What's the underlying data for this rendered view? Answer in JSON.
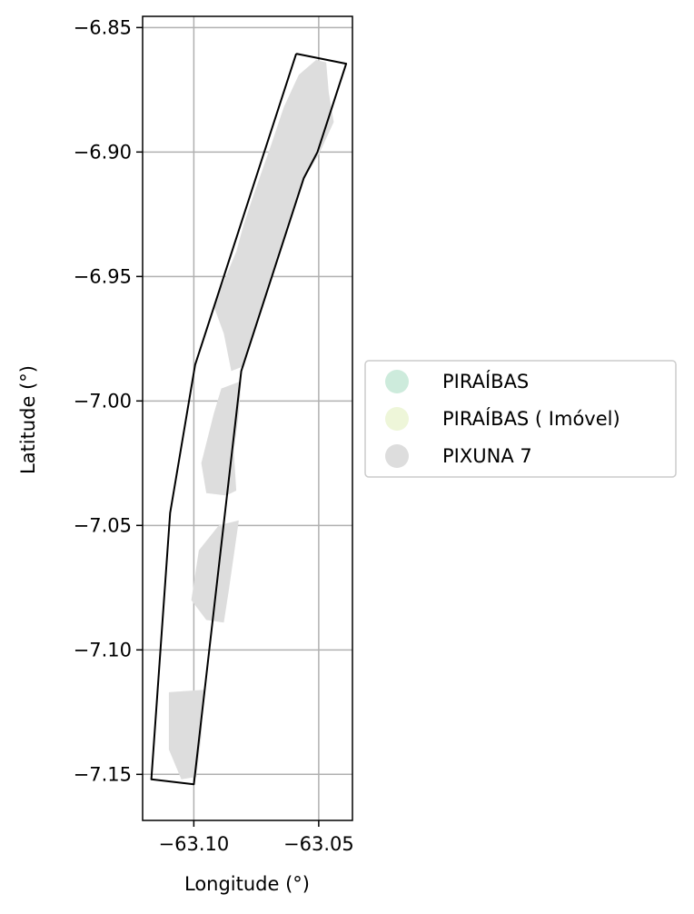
{
  "map": {
    "xlabel": "Longitude (°)",
    "ylabel": "Latitude (°)",
    "xlim": [
      -63.1205,
      -63.0365
    ],
    "ylim": [
      -7.1685,
      -6.8455
    ],
    "grid": true,
    "x_ticks": [
      {
        "value": -63.1,
        "label": "−63.10"
      },
      {
        "value": -63.05,
        "label": "−63.05"
      }
    ],
    "y_ticks": [
      {
        "value": -6.85,
        "label": "−6.85"
      },
      {
        "value": -6.9,
        "label": "−6.90"
      },
      {
        "value": -6.95,
        "label": "−6.95"
      },
      {
        "value": -7.0,
        "label": "−7.00"
      },
      {
        "value": -7.05,
        "label": "−7.05"
      },
      {
        "value": -7.1,
        "label": "−7.10"
      },
      {
        "value": -7.15,
        "label": "−7.15"
      }
    ],
    "legend": {
      "placement": "right",
      "items": [
        {
          "label": "PIRAÍBAS",
          "color": "#cdebdc"
        },
        {
          "label": "PIRAÍBAS ( Imóvel)",
          "color": "#eef6d9"
        },
        {
          "label": "PIXUNA 7",
          "color": "#dddddd"
        }
      ]
    },
    "outline": {
      "name": "boundary",
      "stroke": "#000000",
      "coords": [
        [
          -63.059,
          -6.8605
        ],
        [
          -63.039,
          -6.8645
        ],
        [
          -63.0505,
          -6.9
        ],
        [
          -63.056,
          -6.9105
        ],
        [
          -63.081,
          -6.988
        ],
        [
          -63.1,
          -7.154
        ],
        [
          -63.117,
          -7.152
        ],
        [
          -63.1095,
          -7.045
        ],
        [
          -63.0995,
          -6.9855
        ],
        [
          -63.059,
          -6.8605
        ]
      ]
    },
    "features": [
      {
        "name": "PIXUNA 7",
        "color": "#dddddd",
        "coords": [
          [
            -63.051,
            -6.863
          ],
          [
            -63.047,
            -6.864
          ],
          [
            -63.046,
            -6.876
          ],
          [
            -63.044,
            -6.888
          ],
          [
            -63.05,
            -6.901
          ],
          [
            -63.056,
            -6.911
          ],
          [
            -63.065,
            -6.939
          ],
          [
            -63.072,
            -6.961
          ],
          [
            -63.08,
            -6.986
          ],
          [
            -63.085,
            -6.988
          ],
          [
            -63.088,
            -6.973
          ],
          [
            -63.092,
            -6.962
          ],
          [
            -63.088,
            -6.952
          ],
          [
            -63.083,
            -6.94
          ],
          [
            -63.08,
            -6.929
          ],
          [
            -63.076,
            -6.917
          ],
          [
            -63.069,
            -6.897
          ],
          [
            -63.064,
            -6.882
          ],
          [
            -63.058,
            -6.869
          ],
          [
            -63.051,
            -6.863
          ]
        ]
      },
      {
        "name": "PIXUNA 7",
        "color": "#dddddd",
        "coords": [
          [
            -63.081,
            -6.992
          ],
          [
            -63.089,
            -6.995
          ],
          [
            -63.092,
            -7.005
          ],
          [
            -63.097,
            -7.025
          ],
          [
            -63.095,
            -7.037
          ],
          [
            -63.087,
            -7.038
          ],
          [
            -63.083,
            -7.036
          ],
          [
            -63.084,
            -7.02
          ],
          [
            -63.082,
            -7.005
          ],
          [
            -63.081,
            -6.992
          ]
        ]
      },
      {
        "name": "PIXUNA 7",
        "color": "#dddddd",
        "coords": [
          [
            -63.082,
            -7.048
          ],
          [
            -63.09,
            -7.05
          ],
          [
            -63.098,
            -7.06
          ],
          [
            -63.101,
            -7.08
          ],
          [
            -63.095,
            -7.088
          ],
          [
            -63.088,
            -7.089
          ],
          [
            -63.086,
            -7.076
          ],
          [
            -63.084,
            -7.062
          ],
          [
            -63.082,
            -7.048
          ]
        ]
      },
      {
        "name": "PIXUNA 7",
        "color": "#dddddd",
        "coords": [
          [
            -63.096,
            -7.116
          ],
          [
            -63.11,
            -7.117
          ],
          [
            -63.11,
            -7.14
          ],
          [
            -63.105,
            -7.152
          ],
          [
            -63.099,
            -7.151
          ],
          [
            -63.097,
            -7.135
          ],
          [
            -63.096,
            -7.116
          ]
        ]
      }
    ]
  }
}
